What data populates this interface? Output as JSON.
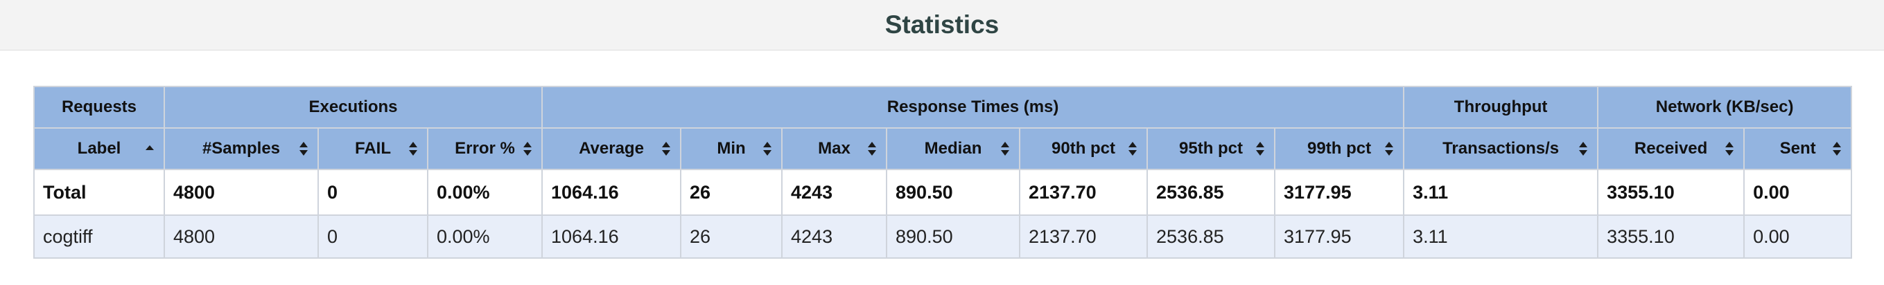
{
  "page": {
    "title": "Statistics"
  },
  "groups": {
    "requests": "Requests",
    "executions": "Executions",
    "response_times": "Response Times (ms)",
    "throughput": "Throughput",
    "network": "Network (KB/sec)"
  },
  "columns": {
    "label": "Label",
    "samples": "#Samples",
    "fail": "FAIL",
    "error_pct": "Error %",
    "average": "Average",
    "min": "Min",
    "max": "Max",
    "median": "Median",
    "p90": "90th pct",
    "p95": "95th pct",
    "p99": "99th pct",
    "transactions": "Transactions/s",
    "received": "Received",
    "sent": "Sent"
  },
  "sort": {
    "active_column": "label",
    "icon_active": "sort-ascending-icon",
    "icon_inactive": "sort-both-icon"
  },
  "rows": {
    "total": {
      "label": "Total",
      "samples": "4800",
      "fail": "0",
      "error_pct": "0.00%",
      "average": "1064.16",
      "min": "26",
      "max": "4243",
      "median": "890.50",
      "p90": "2137.70",
      "p95": "2536.85",
      "p99": "3177.95",
      "transactions": "3.11",
      "received": "3355.10",
      "sent": "0.00"
    },
    "cogtiff": {
      "label": "cogtiff",
      "samples": "4800",
      "fail": "0",
      "error_pct": "0.00%",
      "average": "1064.16",
      "min": "26",
      "max": "4243",
      "median": "890.50",
      "p90": "2137.70",
      "p95": "2536.85",
      "p99": "3177.95",
      "transactions": "3.11",
      "received": "3355.10",
      "sent": "0.00"
    }
  },
  "colors": {
    "header_bg": "#93b4e0",
    "row_alt_bg": "#e8eef9",
    "title_color": "#2f4544",
    "banner_bg": "#f3f3f3"
  }
}
